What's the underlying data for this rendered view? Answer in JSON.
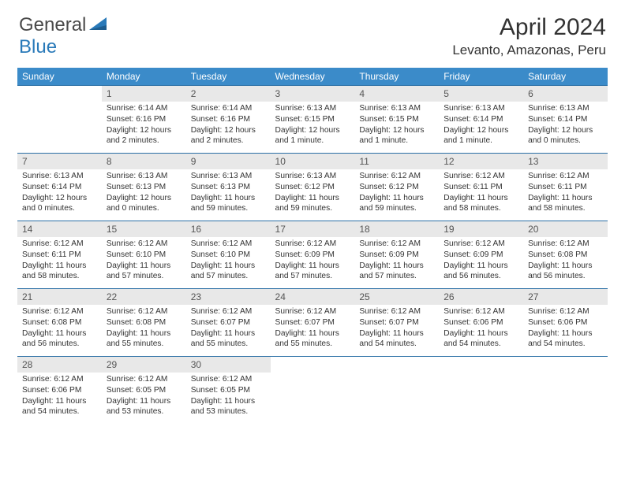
{
  "logo": {
    "text1": "General",
    "text2": "Blue"
  },
  "title": "April 2024",
  "location": "Levanto, Amazonas, Peru",
  "headers": [
    "Sunday",
    "Monday",
    "Tuesday",
    "Wednesday",
    "Thursday",
    "Friday",
    "Saturday"
  ],
  "header_bg": "#3b8bc9",
  "header_fg": "#ffffff",
  "daynum_bg": "#e8e8e8",
  "row_border": "#2a6fa5",
  "weeks": [
    [
      {
        "n": "",
        "empty": true
      },
      {
        "n": "1",
        "sunrise": "Sunrise: 6:14 AM",
        "sunset": "Sunset: 6:16 PM",
        "daylight": "Daylight: 12 hours and 2 minutes."
      },
      {
        "n": "2",
        "sunrise": "Sunrise: 6:14 AM",
        "sunset": "Sunset: 6:16 PM",
        "daylight": "Daylight: 12 hours and 2 minutes."
      },
      {
        "n": "3",
        "sunrise": "Sunrise: 6:13 AM",
        "sunset": "Sunset: 6:15 PM",
        "daylight": "Daylight: 12 hours and 1 minute."
      },
      {
        "n": "4",
        "sunrise": "Sunrise: 6:13 AM",
        "sunset": "Sunset: 6:15 PM",
        "daylight": "Daylight: 12 hours and 1 minute."
      },
      {
        "n": "5",
        "sunrise": "Sunrise: 6:13 AM",
        "sunset": "Sunset: 6:14 PM",
        "daylight": "Daylight: 12 hours and 1 minute."
      },
      {
        "n": "6",
        "sunrise": "Sunrise: 6:13 AM",
        "sunset": "Sunset: 6:14 PM",
        "daylight": "Daylight: 12 hours and 0 minutes."
      }
    ],
    [
      {
        "n": "7",
        "sunrise": "Sunrise: 6:13 AM",
        "sunset": "Sunset: 6:14 PM",
        "daylight": "Daylight: 12 hours and 0 minutes."
      },
      {
        "n": "8",
        "sunrise": "Sunrise: 6:13 AM",
        "sunset": "Sunset: 6:13 PM",
        "daylight": "Daylight: 12 hours and 0 minutes."
      },
      {
        "n": "9",
        "sunrise": "Sunrise: 6:13 AM",
        "sunset": "Sunset: 6:13 PM",
        "daylight": "Daylight: 11 hours and 59 minutes."
      },
      {
        "n": "10",
        "sunrise": "Sunrise: 6:13 AM",
        "sunset": "Sunset: 6:12 PM",
        "daylight": "Daylight: 11 hours and 59 minutes."
      },
      {
        "n": "11",
        "sunrise": "Sunrise: 6:12 AM",
        "sunset": "Sunset: 6:12 PM",
        "daylight": "Daylight: 11 hours and 59 minutes."
      },
      {
        "n": "12",
        "sunrise": "Sunrise: 6:12 AM",
        "sunset": "Sunset: 6:11 PM",
        "daylight": "Daylight: 11 hours and 58 minutes."
      },
      {
        "n": "13",
        "sunrise": "Sunrise: 6:12 AM",
        "sunset": "Sunset: 6:11 PM",
        "daylight": "Daylight: 11 hours and 58 minutes."
      }
    ],
    [
      {
        "n": "14",
        "sunrise": "Sunrise: 6:12 AM",
        "sunset": "Sunset: 6:11 PM",
        "daylight": "Daylight: 11 hours and 58 minutes."
      },
      {
        "n": "15",
        "sunrise": "Sunrise: 6:12 AM",
        "sunset": "Sunset: 6:10 PM",
        "daylight": "Daylight: 11 hours and 57 minutes."
      },
      {
        "n": "16",
        "sunrise": "Sunrise: 6:12 AM",
        "sunset": "Sunset: 6:10 PM",
        "daylight": "Daylight: 11 hours and 57 minutes."
      },
      {
        "n": "17",
        "sunrise": "Sunrise: 6:12 AM",
        "sunset": "Sunset: 6:09 PM",
        "daylight": "Daylight: 11 hours and 57 minutes."
      },
      {
        "n": "18",
        "sunrise": "Sunrise: 6:12 AM",
        "sunset": "Sunset: 6:09 PM",
        "daylight": "Daylight: 11 hours and 57 minutes."
      },
      {
        "n": "19",
        "sunrise": "Sunrise: 6:12 AM",
        "sunset": "Sunset: 6:09 PM",
        "daylight": "Daylight: 11 hours and 56 minutes."
      },
      {
        "n": "20",
        "sunrise": "Sunrise: 6:12 AM",
        "sunset": "Sunset: 6:08 PM",
        "daylight": "Daylight: 11 hours and 56 minutes."
      }
    ],
    [
      {
        "n": "21",
        "sunrise": "Sunrise: 6:12 AM",
        "sunset": "Sunset: 6:08 PM",
        "daylight": "Daylight: 11 hours and 56 minutes."
      },
      {
        "n": "22",
        "sunrise": "Sunrise: 6:12 AM",
        "sunset": "Sunset: 6:08 PM",
        "daylight": "Daylight: 11 hours and 55 minutes."
      },
      {
        "n": "23",
        "sunrise": "Sunrise: 6:12 AM",
        "sunset": "Sunset: 6:07 PM",
        "daylight": "Daylight: 11 hours and 55 minutes."
      },
      {
        "n": "24",
        "sunrise": "Sunrise: 6:12 AM",
        "sunset": "Sunset: 6:07 PM",
        "daylight": "Daylight: 11 hours and 55 minutes."
      },
      {
        "n": "25",
        "sunrise": "Sunrise: 6:12 AM",
        "sunset": "Sunset: 6:07 PM",
        "daylight": "Daylight: 11 hours and 54 minutes."
      },
      {
        "n": "26",
        "sunrise": "Sunrise: 6:12 AM",
        "sunset": "Sunset: 6:06 PM",
        "daylight": "Daylight: 11 hours and 54 minutes."
      },
      {
        "n": "27",
        "sunrise": "Sunrise: 6:12 AM",
        "sunset": "Sunset: 6:06 PM",
        "daylight": "Daylight: 11 hours and 54 minutes."
      }
    ],
    [
      {
        "n": "28",
        "sunrise": "Sunrise: 6:12 AM",
        "sunset": "Sunset: 6:06 PM",
        "daylight": "Daylight: 11 hours and 54 minutes."
      },
      {
        "n": "29",
        "sunrise": "Sunrise: 6:12 AM",
        "sunset": "Sunset: 6:05 PM",
        "daylight": "Daylight: 11 hours and 53 minutes."
      },
      {
        "n": "30",
        "sunrise": "Sunrise: 6:12 AM",
        "sunset": "Sunset: 6:05 PM",
        "daylight": "Daylight: 11 hours and 53 minutes."
      },
      {
        "n": "",
        "empty": true
      },
      {
        "n": "",
        "empty": true
      },
      {
        "n": "",
        "empty": true
      },
      {
        "n": "",
        "empty": true
      }
    ]
  ]
}
